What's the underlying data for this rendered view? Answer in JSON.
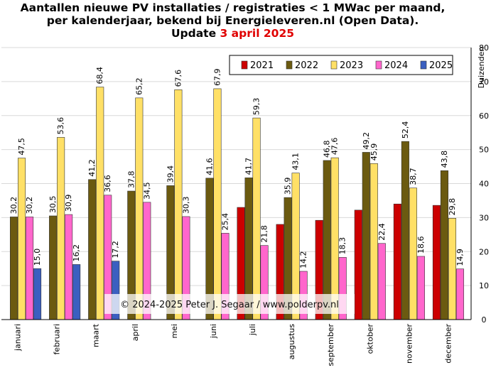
{
  "title": {
    "line1": "Aantallen  nieuwe PV installaties  / registraties  < 1 MWac per maand,",
    "line2": "per kalenderjaar, bekend bij Energieleveren.nl  (Open Data).",
    "line3_prefix": "Update ",
    "line3_date": "3 april  2025"
  },
  "watermark": "© 2024-2025  Peter J. Segaar / www.polderpv.nl",
  "colors": {
    "2021": "#cc0000",
    "2022": "#6b5a10",
    "2023": "#ffe066",
    "2024": "#ff66cc",
    "2025": "#3b5fc0",
    "grid": "#d9d9d9"
  },
  "chart_data": {
    "type": "bar",
    "categories": [
      "januari",
      "februari",
      "maart",
      "april",
      "mei",
      "juni",
      "juli",
      "augustus",
      "september",
      "oktober",
      "november",
      "december"
    ],
    "series": [
      {
        "name": "2021",
        "values": [
          null,
          null,
          null,
          null,
          null,
          null,
          33.0,
          28.0,
          29.2,
          32.2,
          34.0,
          33.6
        ],
        "labels": [
          null,
          null,
          null,
          null,
          null,
          null,
          null,
          null,
          null,
          null,
          null,
          null
        ]
      },
      {
        "name": "2022",
        "values": [
          30.2,
          30.5,
          41.2,
          37.8,
          39.4,
          41.6,
          41.7,
          35.9,
          46.8,
          49.2,
          52.4,
          43.8
        ],
        "labels": [
          "30,2",
          "30,5",
          "41,2",
          "37,8",
          "39,4",
          "41,6",
          "41,7",
          "35,9",
          "46,8",
          "49,2",
          "52,4",
          "43,8"
        ]
      },
      {
        "name": "2023",
        "values": [
          47.5,
          53.6,
          68.4,
          65.2,
          67.6,
          67.9,
          59.3,
          43.1,
          47.6,
          45.9,
          38.7,
          29.8
        ],
        "labels": [
          "47,5",
          "53,6",
          "68,4",
          "65,2",
          "67,6",
          "67,9",
          "59,3",
          "43,1",
          "47,6",
          "45,9",
          "38,7",
          "29,8"
        ]
      },
      {
        "name": "2024",
        "values": [
          30.2,
          30.9,
          36.6,
          34.5,
          30.3,
          25.4,
          21.8,
          14.2,
          18.3,
          22.4,
          18.6,
          14.9
        ],
        "labels": [
          "30,2",
          "30,9",
          "36,6",
          "34,5",
          "30,3",
          "25,4",
          "21,8",
          "14,2",
          "18,3",
          "22,4",
          "18,6",
          "14,9"
        ]
      },
      {
        "name": "2025",
        "values": [
          15.0,
          16.2,
          17.2,
          null,
          null,
          null,
          null,
          null,
          null,
          null,
          null,
          null
        ],
        "labels": [
          "15,0",
          "16,2",
          "17,2",
          null,
          null,
          null,
          null,
          null,
          null,
          null,
          null,
          null
        ]
      }
    ],
    "ylabel": "Duizenden",
    "ylim": [
      0,
      80
    ],
    "yticks": [
      0,
      10,
      20,
      30,
      40,
      50,
      60,
      70,
      80
    ],
    "y_axis_side": "right",
    "grid": true,
    "legend_position": "top-right"
  }
}
